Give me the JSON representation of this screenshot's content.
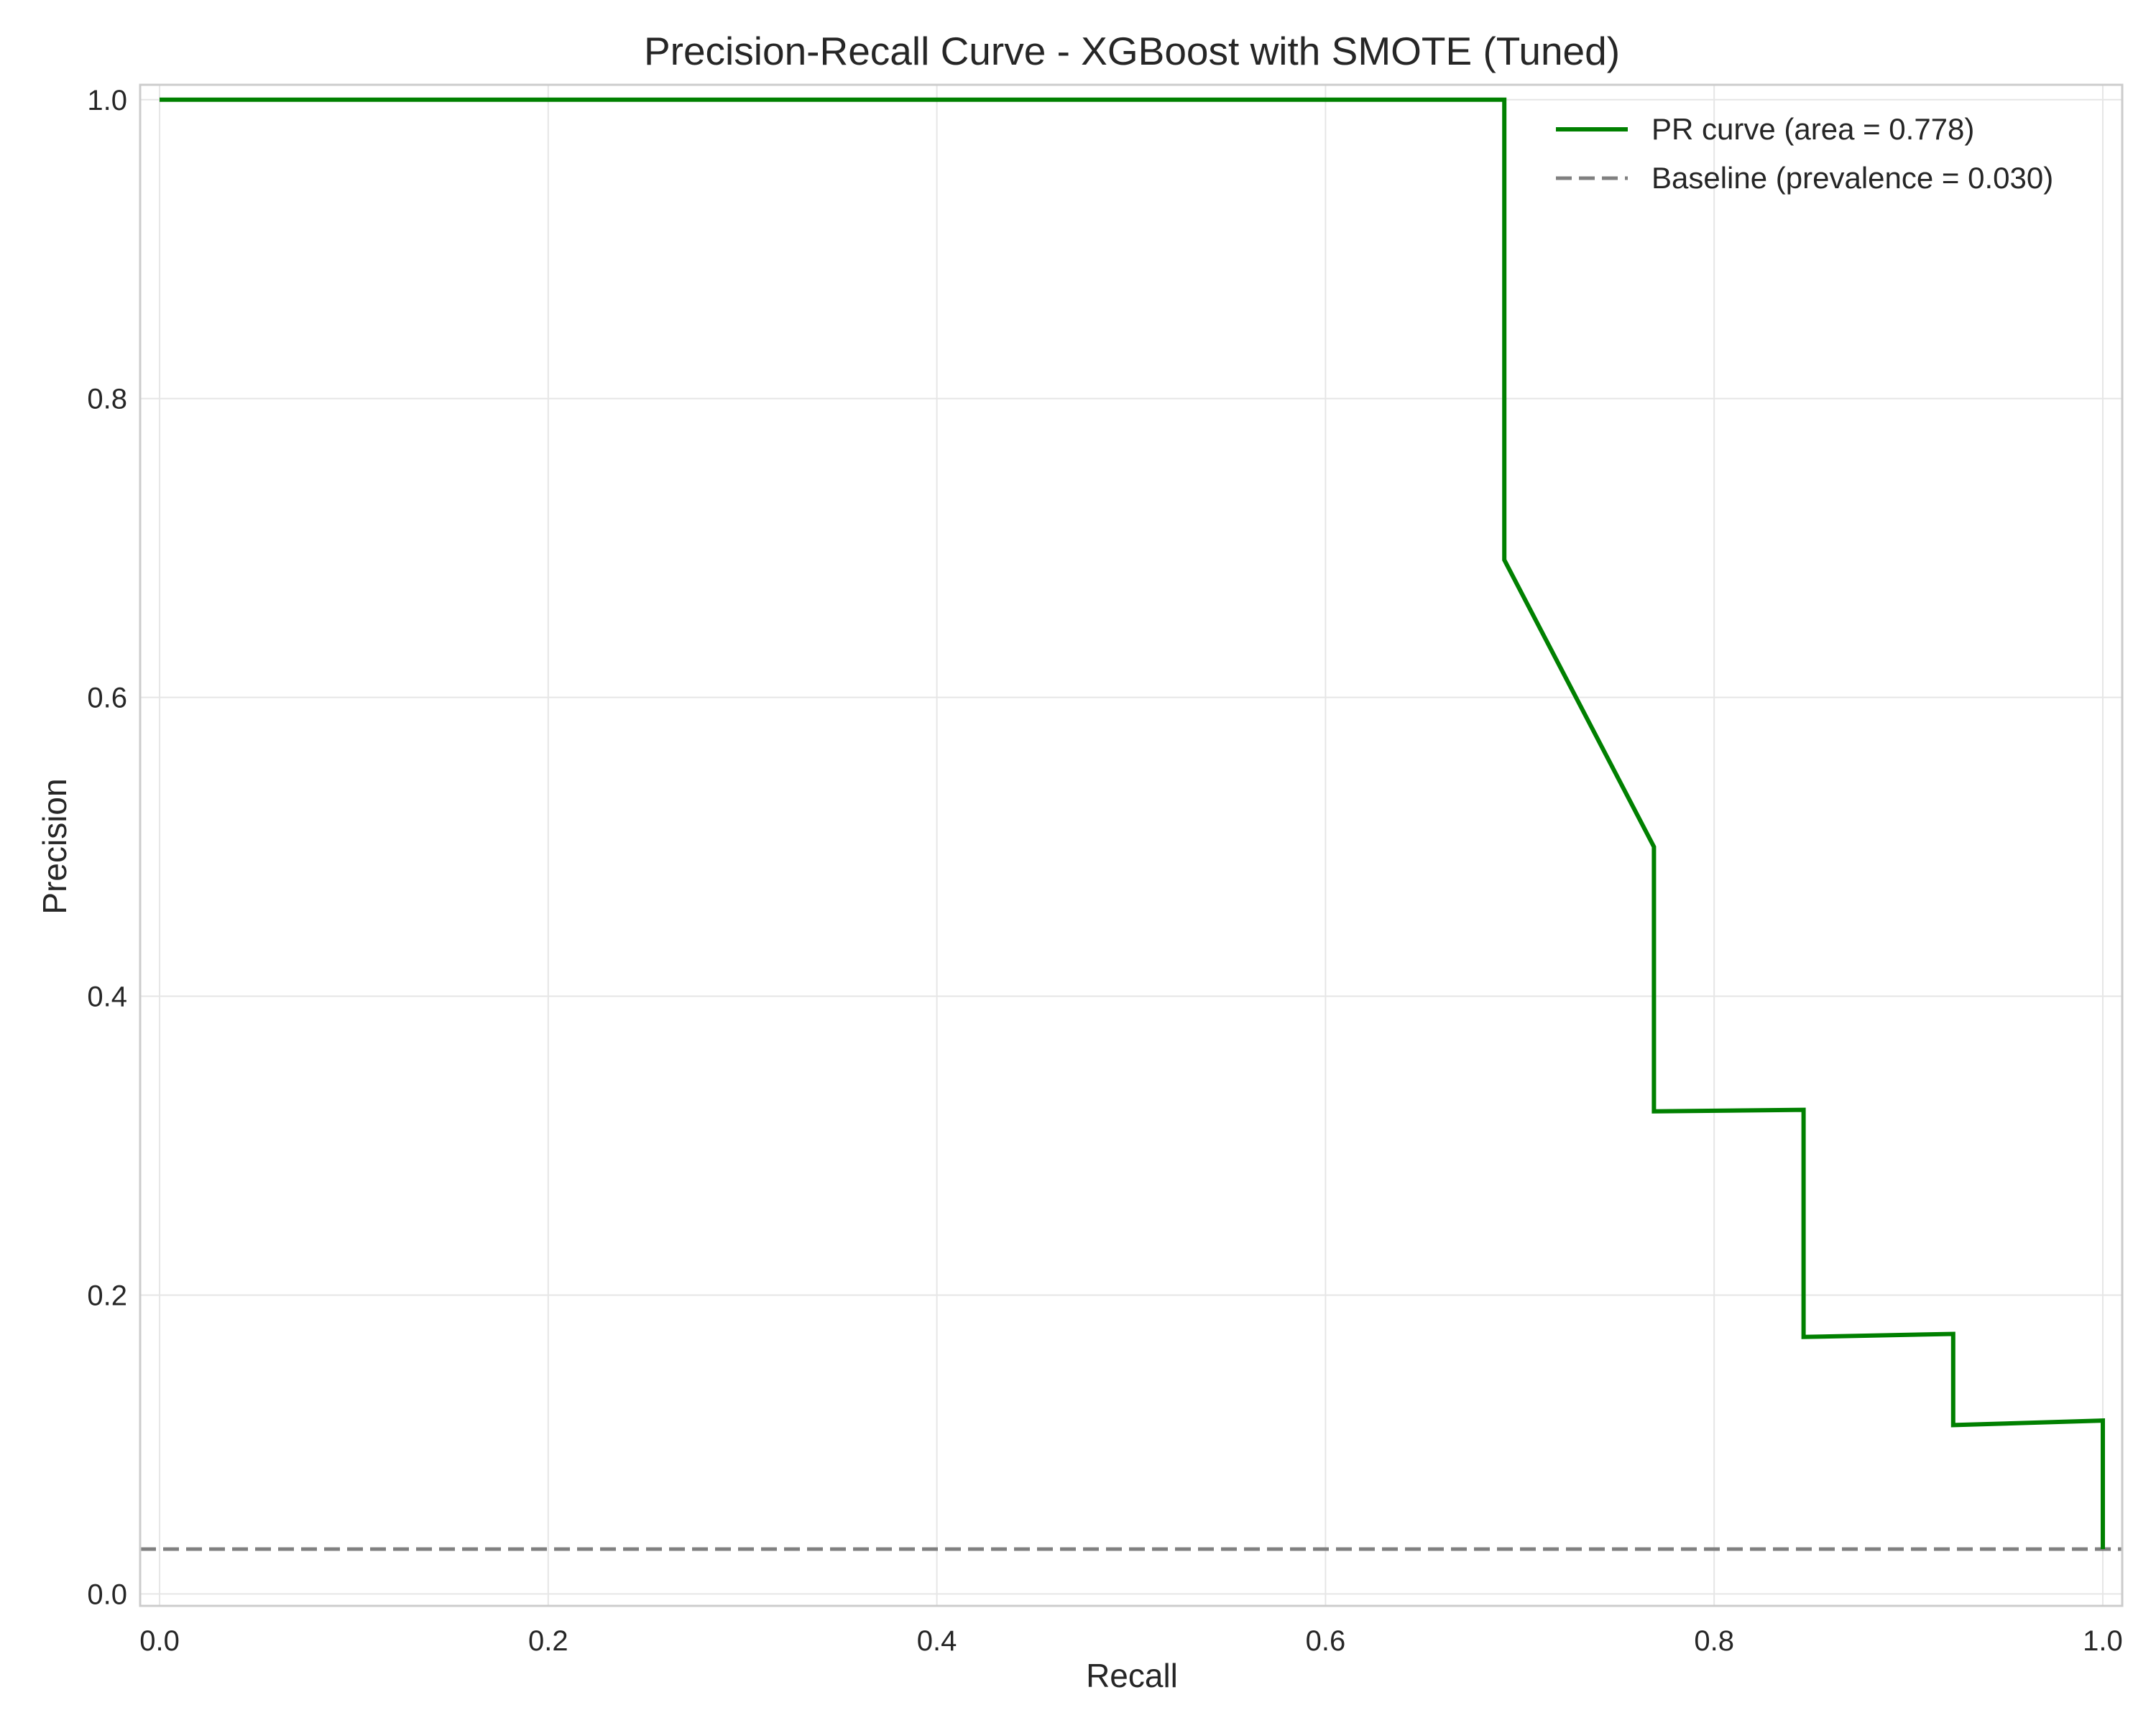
{
  "chart_data": {
    "type": "line",
    "title": "Precision-Recall Curve - XGBoost with SMOTE (Tuned)",
    "xlabel": "Recall",
    "ylabel": "Precision",
    "xlim": [
      -0.01,
      1.01
    ],
    "ylim": [
      -0.008,
      1.01
    ],
    "x_ticks": [
      "0.0",
      "0.2",
      "0.4",
      "0.6",
      "0.8",
      "1.0"
    ],
    "y_ticks": [
      "0.0",
      "0.2",
      "0.4",
      "0.6",
      "0.8",
      "1.0"
    ],
    "grid": true,
    "legend_position": "top-right",
    "series": [
      {
        "name": "PR curve (area = 0.778)",
        "style": "solid",
        "color": "#008000",
        "x": [
          0.0,
          0.692,
          0.692,
          0.769,
          0.769,
          0.846,
          0.846,
          0.923,
          0.923,
          1.0,
          1.0
        ],
        "y": [
          1.0,
          1.0,
          0.692,
          0.5,
          0.323,
          0.324,
          0.172,
          0.174,
          0.113,
          0.116,
          0.03
        ]
      },
      {
        "name": "Baseline (prevalence = 0.030)",
        "style": "dashed",
        "color": "#808080",
        "x": [
          -0.01,
          1.01
        ],
        "y": [
          0.03,
          0.03
        ]
      }
    ]
  }
}
